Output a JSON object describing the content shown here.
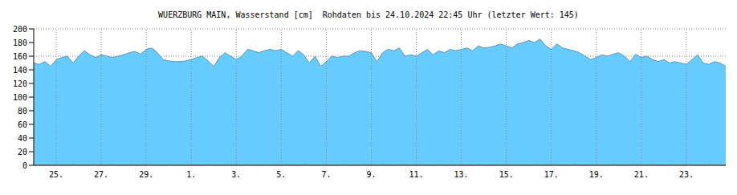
{
  "chart_data": {
    "type": "area",
    "title": "WUERZBURG MAIN, Wasserstand [cm]  Rohdaten bis 24.10.2024 22:45 Uhr (letzter Wert: 145)",
    "color": "#66ccff",
    "grid": true,
    "ylim": [
      0,
      200
    ],
    "yticks": [
      0,
      20,
      40,
      60,
      80,
      100,
      120,
      140,
      160,
      180,
      200
    ],
    "categories": [
      null,
      null,
      null,
      null,
      "25.",
      null,
      null,
      null,
      null,
      null,
      null,
      null,
      "27.",
      null,
      null,
      null,
      null,
      null,
      null,
      null,
      "29.",
      null,
      null,
      null,
      null,
      null,
      null,
      null,
      "1.",
      null,
      null,
      null,
      null,
      null,
      null,
      null,
      "3.",
      null,
      null,
      null,
      null,
      null,
      null,
      null,
      "5.",
      null,
      null,
      null,
      null,
      null,
      null,
      null,
      "7.",
      null,
      null,
      null,
      null,
      null,
      null,
      null,
      "9.",
      null,
      null,
      null,
      null,
      null,
      null,
      null,
      "11.",
      null,
      null,
      null,
      null,
      null,
      null,
      null,
      "13.",
      null,
      null,
      null,
      null,
      null,
      null,
      null,
      "15.",
      null,
      null,
      null,
      null,
      null,
      null,
      null,
      "17.",
      null,
      null,
      null,
      null,
      null,
      null,
      null,
      "19.",
      null,
      null,
      null,
      null,
      null,
      null,
      null,
      "21.",
      null,
      null,
      null,
      null,
      null,
      null,
      null,
      "23.",
      null,
      null,
      null,
      null,
      null,
      null,
      null
    ],
    "values": [
      150,
      148,
      152,
      145,
      155,
      158,
      160,
      150,
      160,
      168,
      162,
      158,
      162,
      160,
      158,
      160,
      162,
      165,
      167,
      163,
      170,
      172,
      165,
      155,
      153,
      152,
      152,
      153,
      155,
      158,
      160,
      153,
      145,
      158,
      165,
      160,
      155,
      160,
      170,
      168,
      165,
      168,
      170,
      168,
      170,
      165,
      160,
      168,
      162,
      150,
      160,
      145,
      152,
      160,
      158,
      160,
      160,
      165,
      168,
      167,
      165,
      152,
      165,
      170,
      168,
      172,
      160,
      162,
      160,
      165,
      170,
      162,
      168,
      165,
      170,
      168,
      170,
      172,
      168,
      175,
      172,
      173,
      175,
      178,
      175,
      172,
      178,
      180,
      183,
      180,
      185,
      175,
      170,
      178,
      172,
      170,
      168,
      165,
      160,
      155,
      158,
      162,
      160,
      163,
      165,
      160,
      152,
      163,
      158,
      160,
      155,
      152,
      155,
      150,
      152,
      150,
      148,
      155,
      162,
      150,
      148,
      152,
      150,
      145
    ]
  }
}
